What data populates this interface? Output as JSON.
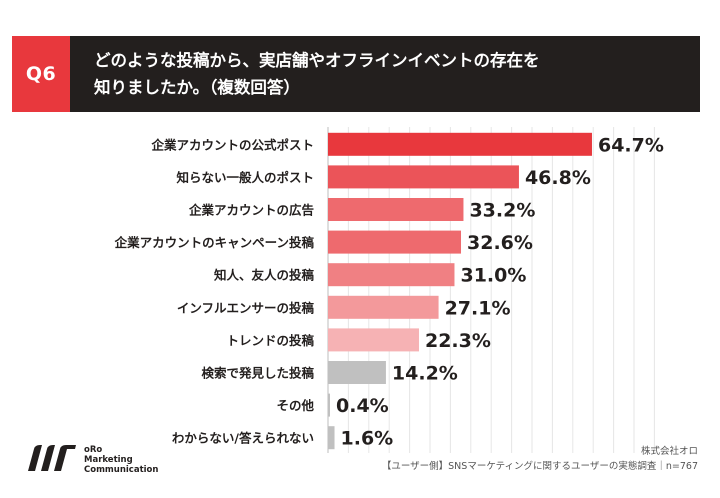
{
  "header": {
    "badge": "Q6",
    "title_line1": "どのような投稿から、実店舗やオフラインイベントの存在を",
    "title_line2": "知りましたか。（複数回答）"
  },
  "chart_data": {
    "type": "bar",
    "orientation": "horizontal",
    "unit": "%",
    "xlim": [
      0,
      80
    ],
    "categories": [
      "企業アカウントの公式ポスト",
      "知らない一般人のポスト",
      "企業アカウントの広告",
      "企業アカウントのキャンペーン投稿",
      "知人、友人の投稿",
      "インフルエンサーの投稿",
      "トレンドの投稿",
      "検索で発見した投稿",
      "その他",
      "わからない/答えられない"
    ],
    "values": [
      64.7,
      46.8,
      33.2,
      32.6,
      31.0,
      27.1,
      22.3,
      14.2,
      0.4,
      1.6
    ],
    "value_labels": [
      "64.7%",
      "46.8%",
      "33.2%",
      "32.6%",
      "31.0%",
      "27.1%",
      "22.3%",
      "14.2%",
      "0.4%",
      "1.6%"
    ],
    "bar_colors": [
      "#e8383d",
      "#eb5459",
      "#ee6a6e",
      "#ee6a6e",
      "#f08083",
      "#f3999b",
      "#f6b2b4",
      "#c0c0c0",
      "#c0c0c0",
      "#c0c0c0"
    ],
    "gridlines": true
  },
  "logo": {
    "line1": "oRo",
    "line2": "Marketing",
    "line3": "Communication"
  },
  "source": {
    "company": "株式会社オロ",
    "survey": "【ユーザー側】SNSマーケティングに関するユーザーの実態調査｜n=767"
  },
  "colors": {
    "accent": "#e8383d",
    "header_bg": "#231f1e"
  }
}
